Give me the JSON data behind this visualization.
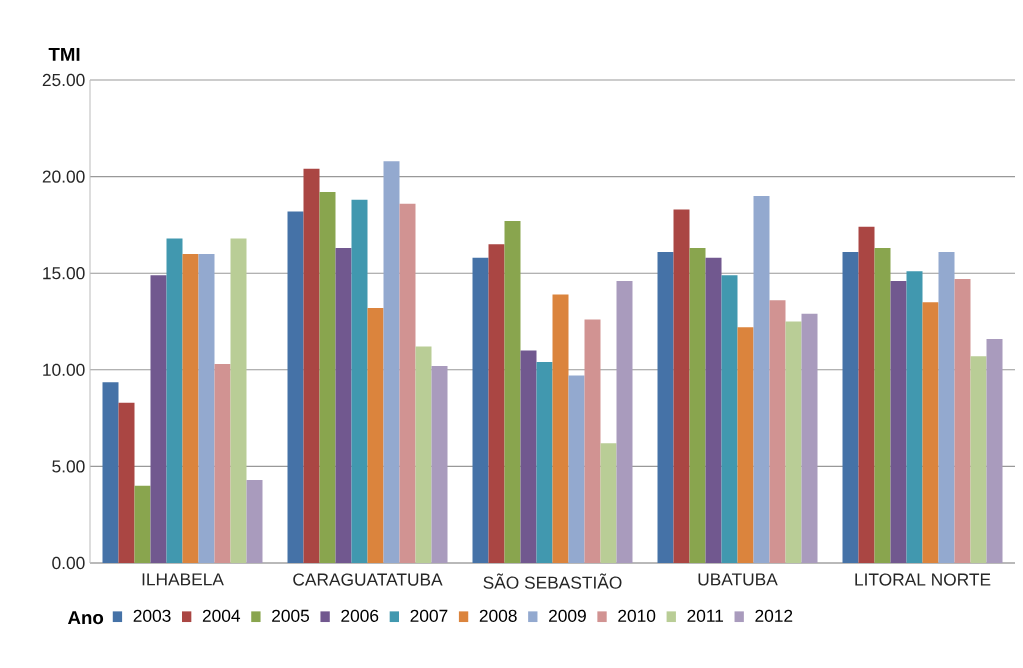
{
  "chart_data": {
    "type": "bar",
    "ylabel": "TMI",
    "legend_title": "Ano",
    "legend": "bottom",
    "grid": "y",
    "categories": [
      "ILHABELA",
      "CARAGUATATUBA",
      "SÃO SEBASTIÃO",
      "UBATUBA",
      "LITORAL NORTE"
    ],
    "ylim": [
      0,
      25
    ],
    "yticks": [
      {
        "value": 0,
        "label": "0.00"
      },
      {
        "value": 5,
        "label": "5.00"
      },
      {
        "value": 10,
        "label": "10.00"
      },
      {
        "value": 15,
        "label": "15.00"
      },
      {
        "value": 20,
        "label": "20.00"
      },
      {
        "value": 25,
        "label": "25.00"
      }
    ],
    "series": [
      {
        "name": "2003",
        "color": "#4572a7",
        "values": [
          9.35,
          18.2,
          15.8,
          16.1,
          16.1
        ]
      },
      {
        "name": "2004",
        "color": "#aa4643",
        "values": [
          8.3,
          20.4,
          16.5,
          18.3,
          17.4
        ]
      },
      {
        "name": "2005",
        "color": "#89a54e",
        "values": [
          4.0,
          19.2,
          17.7,
          16.3,
          16.3
        ]
      },
      {
        "name": "2006",
        "color": "#71588f",
        "values": [
          14.9,
          16.3,
          11.0,
          15.8,
          14.6
        ]
      },
      {
        "name": "2007",
        "color": "#4198af",
        "values": [
          16.8,
          18.8,
          10.4,
          14.9,
          15.1
        ]
      },
      {
        "name": "2008",
        "color": "#db843d",
        "values": [
          16.0,
          13.2,
          13.9,
          12.2,
          13.5
        ]
      },
      {
        "name": "2009",
        "color": "#93a9cf",
        "values": [
          16.0,
          20.8,
          9.7,
          19.0,
          16.1
        ]
      },
      {
        "name": "2010",
        "color": "#d19392",
        "values": [
          10.3,
          18.6,
          12.6,
          13.6,
          14.7
        ]
      },
      {
        "name": "2011",
        "color": "#b9cd96",
        "values": [
          16.8,
          11.2,
          6.2,
          12.5,
          10.7
        ]
      },
      {
        "name": "2012",
        "color": "#a99bbd",
        "values": [
          4.3,
          10.2,
          14.6,
          12.9,
          11.6
        ]
      }
    ]
  }
}
